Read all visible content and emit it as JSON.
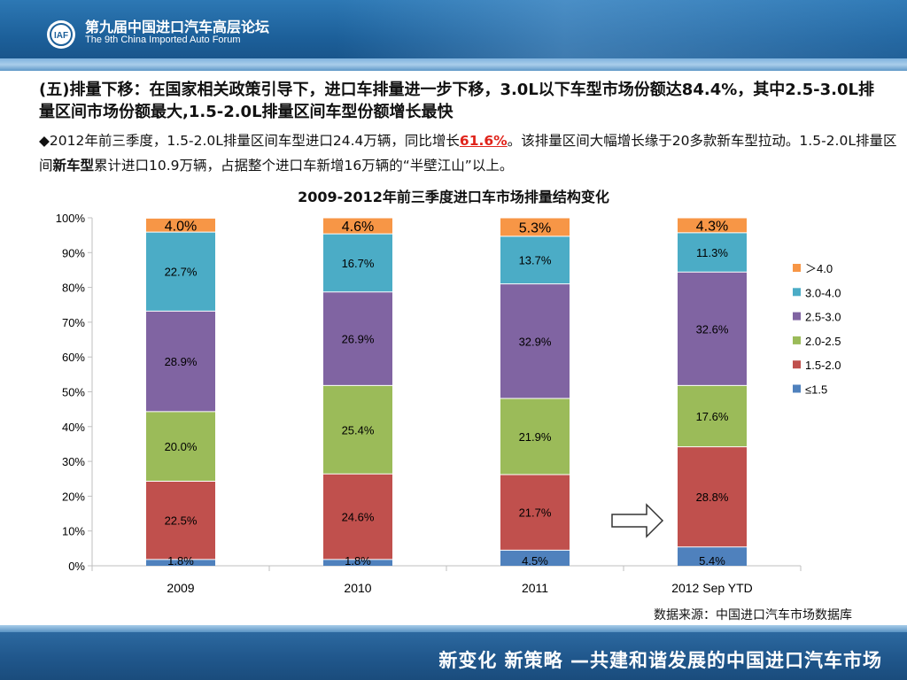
{
  "header": {
    "forum_cn": "第九届中国进口汽车高层论坛",
    "forum_en": "The 9th China Imported Auto Forum",
    "logo_text": "IAF"
  },
  "headline": "(五)排量下移：在国家相关政策引导下，进口车排量进一步下移，3.0L以下车型市场份额达84.4%，其中2.5-3.0L排量区间市场份额最大,1.5-2.0L排量区间车型份额增长最快",
  "body": {
    "p1_a": "◆2012年前三季度，1.5-2.0L排量区间车型进口24.4万辆，同比增长",
    "p1_highlight": "61.6%",
    "p1_b": "。该排量区间大幅增长缘于20多款新车型拉动。1.5-2.0L排量区间",
    "p1_bold": "新车型",
    "p1_c": "累计进口10.9万辆，占据整个进口车新增16万辆的“半壁江山”以上。"
  },
  "source": "数据来源：中国进口汽车市场数据库",
  "footer": {
    "slogan": "新变化  新策略 —共建和谐发展的中国进口汽车市场"
  },
  "chart_data": {
    "type": "bar",
    "stacked": true,
    "title": "2009-2012年前三季度进口车市场排量结构变化",
    "categories": [
      "2009",
      "2010",
      "2011",
      "2012 Sep YTD"
    ],
    "ylim": [
      0,
      100
    ],
    "y_ticks": [
      "0%",
      "10%",
      "20%",
      "30%",
      "40%",
      "50%",
      "60%",
      "70%",
      "80%",
      "90%",
      "100%"
    ],
    "legend_position": "right",
    "series": [
      {
        "name": "≤1.5",
        "color": "#4f81bd",
        "values": [
          1.8,
          1.8,
          4.5,
          5.4
        ],
        "labels": [
          "1.8%",
          "1.8%",
          "4.5%",
          "5.4%"
        ]
      },
      {
        "name": "1.5-2.0",
        "color": "#c0504d",
        "values": [
          22.5,
          24.6,
          21.7,
          28.8
        ],
        "labels": [
          "22.5%",
          "24.6%",
          "21.7%",
          "28.8%"
        ]
      },
      {
        "name": "2.0-2.5",
        "color": "#9bbb59",
        "values": [
          20.0,
          25.4,
          21.9,
          17.6
        ],
        "labels": [
          "20.0%",
          "25.4%",
          "21.9%",
          "17.6%"
        ]
      },
      {
        "name": "2.5-3.0",
        "color": "#8064a2",
        "values": [
          28.9,
          26.9,
          32.9,
          32.6
        ],
        "labels": [
          "28.9%",
          "26.9%",
          "32.9%",
          "32.6%"
        ]
      },
      {
        "name": "3.0-4.0",
        "color": "#4bacc6",
        "values": [
          22.7,
          16.7,
          13.7,
          11.3
        ],
        "labels": [
          "22.7%",
          "16.7%",
          "13.7%",
          "11.3%"
        ]
      },
      {
        "name": "＞4.0",
        "color": "#f79646",
        "values": [
          4.0,
          4.6,
          5.3,
          4.3
        ],
        "labels": [
          "4.0%",
          "4.6%",
          "5.3%",
          "4.3%"
        ]
      }
    ]
  }
}
